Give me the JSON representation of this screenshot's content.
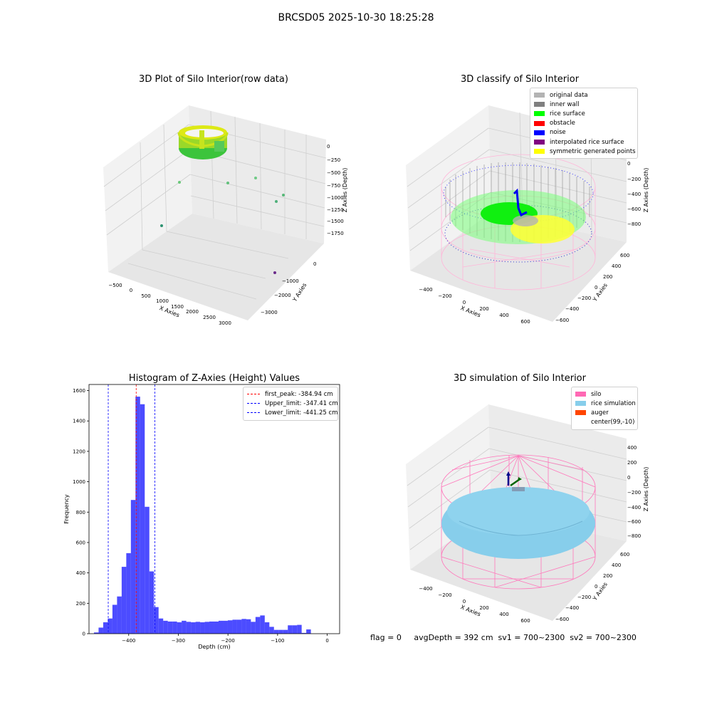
{
  "figure": {
    "suptitle": "BRCSD05 2025-10-30 18:25:28",
    "footer": "flag = 0     avgDepth = 392 cm  sv1 = 700~2300  sv2 = 700~2300"
  },
  "panels": {
    "raw": {
      "title": "3D Plot of Silo Interior(row data)",
      "x_label": "X Axies",
      "y_label": "Y Axies",
      "z_label": "Z Axies (Depth)",
      "x_ticks": [
        "−500",
        "0",
        "500",
        "1000",
        "1500",
        "2000",
        "2500",
        "3000"
      ],
      "y_ticks": [
        "0",
        "−1000",
        "−2000",
        "−3000"
      ],
      "z_ticks": [
        "0",
        "−250",
        "−500",
        "−750",
        "−1000",
        "−1250",
        "−1500",
        "−1750"
      ]
    },
    "classify": {
      "title": "3D classify of Silo Interior",
      "x_label": "X Axies",
      "y_label": "Y Axies",
      "z_label": "Z Axies (Depth)",
      "x_ticks": [
        "−400",
        "−200",
        "0",
        "200",
        "400",
        "600"
      ],
      "y_ticks": [
        "600",
        "400",
        "200",
        "0",
        "−200",
        "−400",
        "−600"
      ],
      "z_ticks": [
        "200",
        "0",
        "−200",
        "−400",
        "−600",
        "−800"
      ],
      "legend": [
        {
          "label": "original data",
          "color": "#b3b3b3"
        },
        {
          "label": "inner wall",
          "color": "#808080"
        },
        {
          "label": "rice surface",
          "color": "#00ff00"
        },
        {
          "label": "obstacle",
          "color": "#ff0000"
        },
        {
          "label": "noise",
          "color": "#0000ff"
        },
        {
          "label": "interpolated rice surface",
          "color": "#800080"
        },
        {
          "label": "symmetric generated points",
          "color": "#ffff00"
        }
      ]
    },
    "simulation": {
      "title": "3D simulation of Silo Interior",
      "x_label": "X Axies",
      "y_label": "Y Axies",
      "z_label": "Z Axies (Depth)",
      "x_ticks": [
        "−400",
        "−200",
        "0",
        "200",
        "400",
        "600"
      ],
      "y_ticks": [
        "600",
        "400",
        "200",
        "0",
        "−200",
        "−400",
        "−600"
      ],
      "z_ticks": [
        "400",
        "200",
        "0",
        "−200",
        "−400",
        "−600",
        "−800"
      ],
      "legend": [
        {
          "label": "silo",
          "color": "#ff69b4"
        },
        {
          "label": "rice simulation",
          "color": "#87ceeb"
        },
        {
          "label": "auger",
          "color": "#ff4500"
        },
        {
          "label": "center(99,-10)",
          "color": "#ffffff"
        }
      ]
    }
  },
  "chart_data": {
    "type": "bar",
    "title": "Histogram of Z-Axies (Height) Values",
    "xlabel": "Depth (cm)",
    "ylabel": "Frequency",
    "xlim": [
      -480,
      25
    ],
    "ylim": [
      0,
      1640
    ],
    "x_ticks": [
      -400,
      -300,
      -200,
      -100,
      0
    ],
    "x_tick_labels": [
      "−400",
      "−300",
      "−200",
      "−100",
      "0"
    ],
    "y_ticks": [
      0,
      200,
      400,
      600,
      800,
      1000,
      1200,
      1400,
      1600
    ],
    "bar_color": "#0000ff",
    "bins": {
      "start": -470,
      "width": 9.3,
      "values": [
        8,
        40,
        75,
        100,
        190,
        245,
        440,
        530,
        880,
        1560,
        1510,
        835,
        410,
        175,
        100,
        85,
        80,
        80,
        75,
        85,
        78,
        75,
        78,
        75,
        78,
        80,
        80,
        85,
        85,
        88,
        92,
        92,
        97,
        95,
        78,
        110,
        120,
        75,
        45,
        25,
        25,
        25,
        55,
        55,
        58,
        5,
        28
      ]
    },
    "reference_lines": [
      {
        "name": "first_peak: -384.94 cm",
        "x": -384.94,
        "color": "#ff0000"
      },
      {
        "name": "Upper_limit: -347.41 cm",
        "x": -347.41,
        "color": "#0000ff"
      },
      {
        "name": "Lower_limit: -441.25 cm",
        "x": -441.25,
        "color": "#0000ff"
      }
    ],
    "legend_position": "upper right"
  }
}
